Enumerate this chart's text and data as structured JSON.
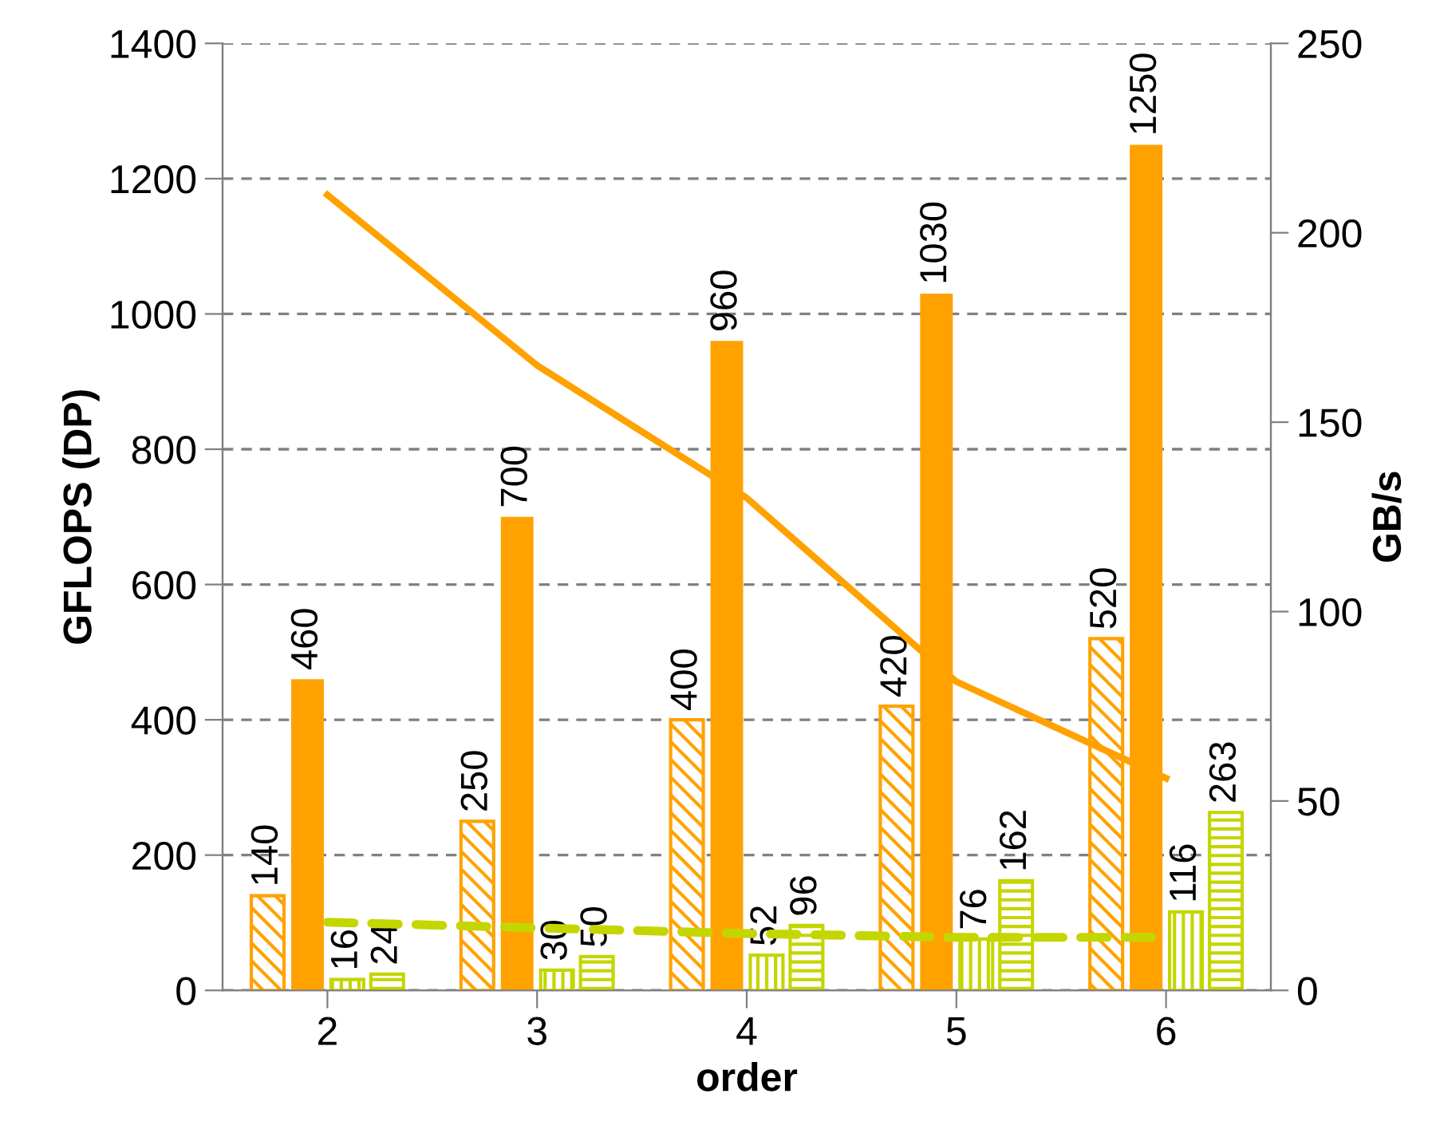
{
  "chart_data": {
    "type": "bar",
    "xlabel": "order",
    "ylabel": "GFLOPS (DP)",
    "y2label": "GB/s",
    "categories": [
      "2",
      "3",
      "4",
      "5",
      "6"
    ],
    "series": [
      {
        "color": "#ffa200",
        "values": [
          140,
          250,
          400,
          420,
          520
        ],
        "value_labels": [
          "140",
          "250",
          "400",
          "420",
          "520"
        ]
      },
      {
        "color": "#ffa200",
        "values": [
          460,
          700,
          960,
          1030,
          1250
        ],
        "value_labels": [
          "460",
          "700",
          "960",
          "1030",
          "1250"
        ]
      },
      {
        "color": "#c4d600",
        "values": [
          16,
          30,
          52,
          76,
          116
        ],
        "value_labels": [
          "16",
          "30",
          "52",
          "76",
          "116"
        ]
      },
      {
        "color": "#c4d600",
        "values": [
          24,
          50,
          96,
          162,
          263
        ],
        "value_labels": [
          "24",
          "50",
          "96",
          "162",
          "263"
        ]
      },
      {
        "type": "line",
        "axis": "y2",
        "color": "#ffa200",
        "line_style": "solid",
        "values": [
          210,
          165,
          130,
          81.5,
          56
        ]
      },
      {
        "type": "line",
        "axis": "y2",
        "color": "#c4d600",
        "line_style": "dashed",
        "values": [
          18,
          16.5,
          15,
          14,
          14
        ]
      }
    ],
    "ylim": [
      0,
      1400
    ],
    "yticks": [
      0,
      200,
      400,
      600,
      800,
      1000,
      1200,
      1400
    ],
    "y2lim": [
      0,
      250
    ],
    "y2ticks": [
      0,
      50,
      100,
      150,
      200,
      250
    ],
    "grid": "y",
    "legend": false
  }
}
